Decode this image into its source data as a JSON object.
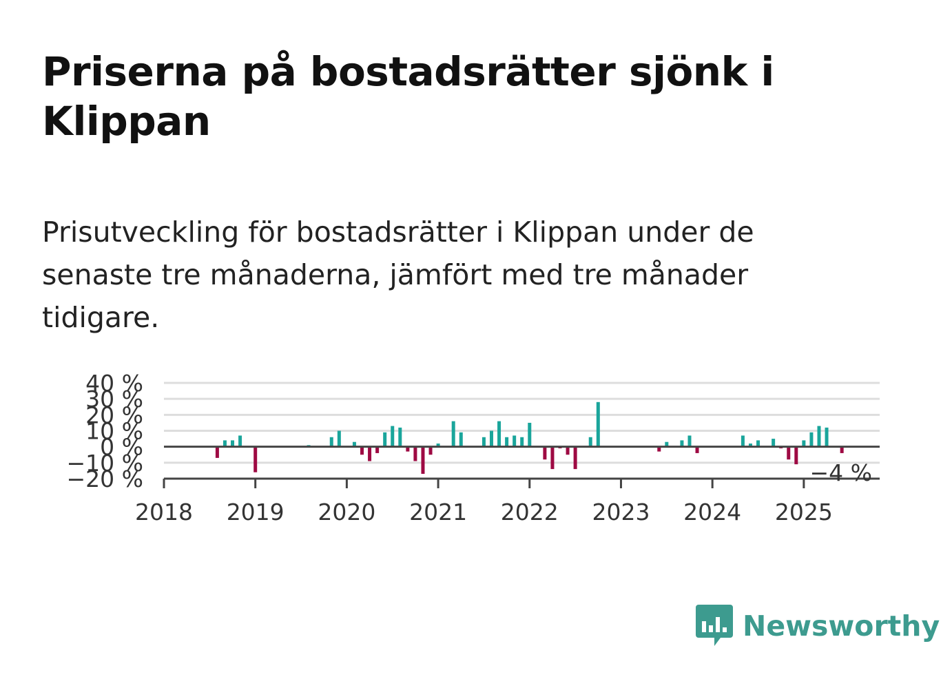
{
  "title": "Priserna på bostadsrätter sjönk i Klippan",
  "subtitle": "Prisutveckling för bostadsrätter i Klippan under de senaste tre månaderna, jämfört med tre månader tidigare.",
  "brand": {
    "name": "Newsworthy",
    "color": "#3d9b8f",
    "icon": "bar-chart-speech-bubble-icon"
  },
  "colors": {
    "positive": "#1aa59b",
    "negative": "#9e0a43",
    "grid": "#dddddd",
    "zero_line": "#444444"
  },
  "chart_data": {
    "type": "bar",
    "title": "",
    "xlabel": "",
    "ylabel": "",
    "ylim": [
      -20,
      40
    ],
    "y_ticks": [
      "−20 %",
      "−10 %",
      "0 %",
      "10 %",
      "20 %",
      "30 %",
      "40 %"
    ],
    "y_tick_values": [
      -20,
      -10,
      0,
      10,
      20,
      30,
      40
    ],
    "x_ticks": [
      "2018",
      "2019",
      "2020",
      "2021",
      "2022",
      "2023",
      "2024",
      "2025"
    ],
    "x_tick_values": [
      2018,
      2019,
      2020,
      2021,
      2022,
      2023,
      2024,
      2025
    ],
    "xlim": [
      2018,
      2025.83
    ],
    "grid": true,
    "last_value_label": "−4 %",
    "series": [
      {
        "values": [
          {
            "x": "2018-08",
            "y": -7
          },
          {
            "x": "2018-09",
            "y": 4
          },
          {
            "x": "2018-10",
            "y": 4
          },
          {
            "x": "2018-11",
            "y": 7
          },
          {
            "x": "2019-01",
            "y": -16
          },
          {
            "x": "2019-08",
            "y": 1
          },
          {
            "x": "2019-11",
            "y": 6
          },
          {
            "x": "2019-12",
            "y": 10
          },
          {
            "x": "2020-02",
            "y": 3
          },
          {
            "x": "2020-03",
            "y": -5
          },
          {
            "x": "2020-04",
            "y": -9
          },
          {
            "x": "2020-05",
            "y": -4
          },
          {
            "x": "2020-06",
            "y": 9
          },
          {
            "x": "2020-07",
            "y": 13
          },
          {
            "x": "2020-08",
            "y": 12
          },
          {
            "x": "2020-09",
            "y": -3
          },
          {
            "x": "2020-10",
            "y": -9
          },
          {
            "x": "2020-11",
            "y": -17
          },
          {
            "x": "2020-12",
            "y": -5
          },
          {
            "x": "2021-01",
            "y": 2
          },
          {
            "x": "2021-03",
            "y": 16
          },
          {
            "x": "2021-04",
            "y": 9
          },
          {
            "x": "2021-07",
            "y": 6
          },
          {
            "x": "2021-08",
            "y": 10
          },
          {
            "x": "2021-09",
            "y": 16
          },
          {
            "x": "2021-10",
            "y": 6
          },
          {
            "x": "2021-11",
            "y": 7
          },
          {
            "x": "2021-12",
            "y": 6
          },
          {
            "x": "2022-01",
            "y": 15
          },
          {
            "x": "2022-03",
            "y": -8
          },
          {
            "x": "2022-04",
            "y": -14
          },
          {
            "x": "2022-05",
            "y": -1
          },
          {
            "x": "2022-06",
            "y": -5
          },
          {
            "x": "2022-07",
            "y": -14
          },
          {
            "x": "2022-08",
            "y": 0
          },
          {
            "x": "2022-09",
            "y": 6
          },
          {
            "x": "2022-10",
            "y": 28
          },
          {
            "x": "2023-06",
            "y": -3
          },
          {
            "x": "2023-07",
            "y": 3
          },
          {
            "x": "2023-09",
            "y": 4
          },
          {
            "x": "2023-10",
            "y": 7
          },
          {
            "x": "2023-11",
            "y": -4
          },
          {
            "x": "2024-05",
            "y": 7
          },
          {
            "x": "2024-06",
            "y": 2
          },
          {
            "x": "2024-07",
            "y": 4
          },
          {
            "x": "2024-09",
            "y": 5
          },
          {
            "x": "2024-10",
            "y": -1
          },
          {
            "x": "2024-11",
            "y": -8
          },
          {
            "x": "2024-12",
            "y": -11
          },
          {
            "x": "2025-01",
            "y": 4
          },
          {
            "x": "2025-02",
            "y": 9
          },
          {
            "x": "2025-03",
            "y": 13
          },
          {
            "x": "2025-04",
            "y": 12
          },
          {
            "x": "2025-06",
            "y": -4
          }
        ]
      }
    ]
  }
}
